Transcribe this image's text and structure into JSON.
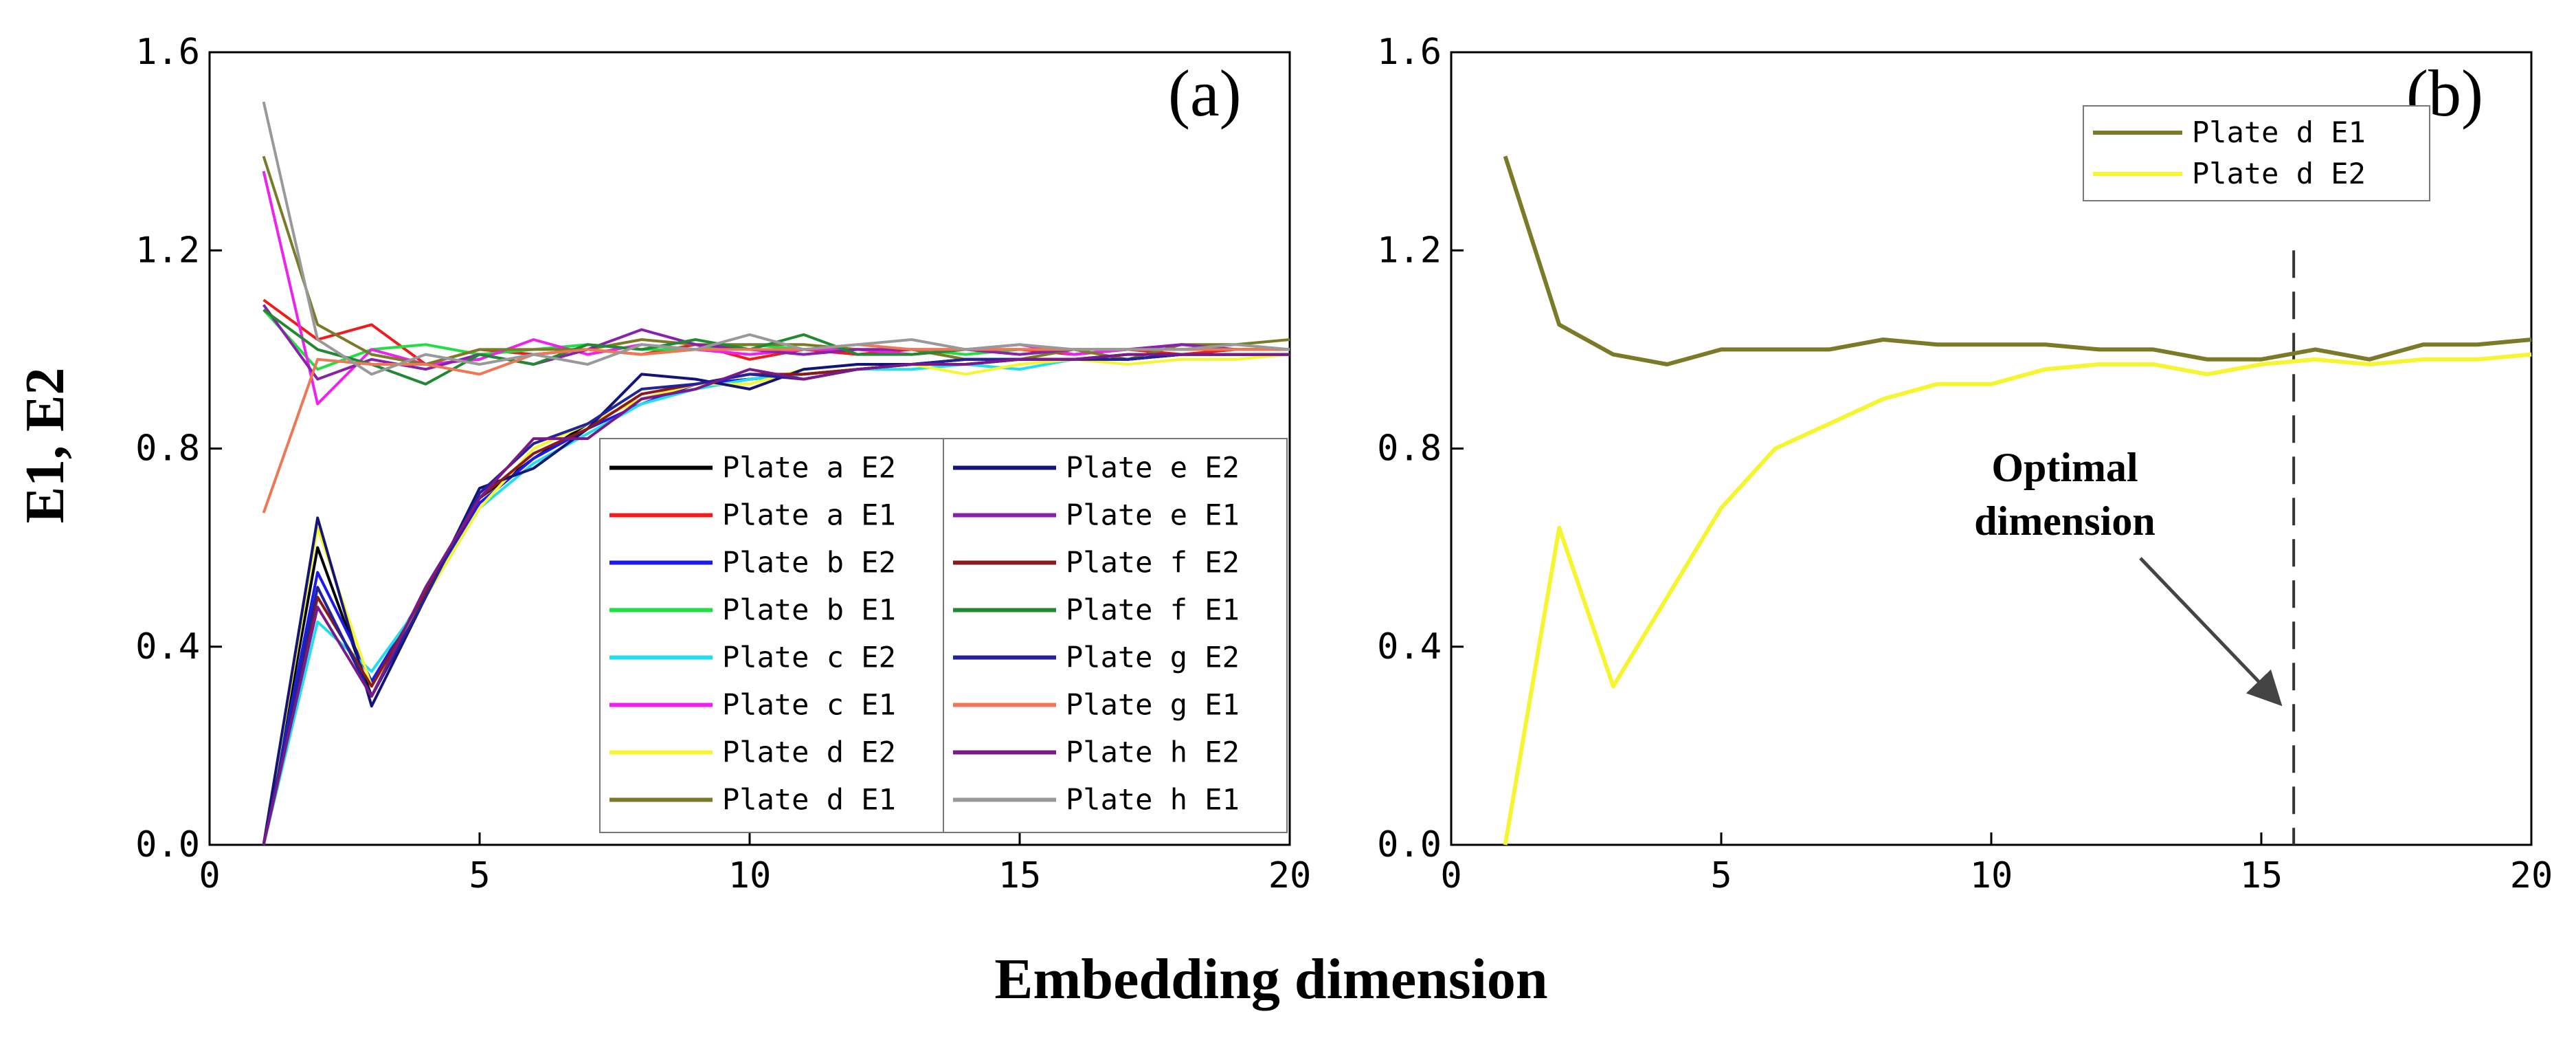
{
  "figure": {
    "xlabel": "Embedding dimension",
    "ylabel": "E1, E2"
  },
  "chart_data": [
    {
      "panel": "(a)",
      "type": "line",
      "xlim": [
        0,
        20
      ],
      "ylim": [
        0,
        1.6
      ],
      "x_ticks": [
        "0",
        "5",
        "10",
        "15",
        "20"
      ],
      "y_ticks": [
        "0.0",
        "0.4",
        "0.8",
        "1.2",
        "1.6"
      ],
      "legend_position": "bottom-right",
      "x": [
        1,
        2,
        3,
        4,
        5,
        6,
        7,
        8,
        9,
        10,
        11,
        12,
        13,
        14,
        15,
        16,
        17,
        18,
        19,
        20
      ],
      "series": [
        {
          "name": "Plate a E2",
          "color": "#000000",
          "values": [
            0.0,
            0.6,
            0.3,
            0.5,
            0.7,
            0.78,
            0.85,
            0.9,
            0.93,
            0.94,
            0.95,
            0.96,
            0.97,
            0.97,
            0.98,
            0.98,
            0.98,
            0.99,
            0.99,
            0.99
          ]
        },
        {
          "name": "Plate a E1",
          "color": "#ee1c1c",
          "values": [
            1.1,
            1.02,
            1.05,
            0.97,
            1.0,
            0.99,
            1.0,
            0.99,
            1.01,
            0.98,
            1.0,
            0.99,
            1.0,
            1.0,
            1.0,
            0.99,
            1.0,
            0.99,
            1.0,
            1.0
          ]
        },
        {
          "name": "Plate b E2",
          "color": "#1a1aee",
          "values": [
            0.0,
            0.55,
            0.33,
            0.51,
            0.69,
            0.78,
            0.84,
            0.89,
            0.93,
            0.94,
            0.95,
            0.96,
            0.97,
            0.97,
            0.98,
            0.98,
            0.98,
            0.99,
            0.99,
            0.99
          ]
        },
        {
          "name": "Plate b E1",
          "color": "#22dd44",
          "values": [
            1.08,
            0.96,
            1.0,
            1.01,
            0.99,
            1.0,
            1.01,
            1.0,
            1.0,
            1.01,
            1.0,
            1.0,
            1.0,
            0.99,
            1.0,
            1.0,
            1.0,
            1.0,
            1.0,
            1.0
          ]
        },
        {
          "name": "Plate c E2",
          "color": "#22ddee",
          "values": [
            0.0,
            0.45,
            0.35,
            0.5,
            0.68,
            0.77,
            0.83,
            0.89,
            0.92,
            0.94,
            0.95,
            0.96,
            0.96,
            0.97,
            0.96,
            0.98,
            0.98,
            0.99,
            0.99,
            0.99
          ]
        },
        {
          "name": "Plate c E1",
          "color": "#ee22ee",
          "values": [
            1.36,
            0.89,
            1.0,
            0.97,
            0.98,
            1.02,
            0.99,
            1.01,
            1.0,
            0.99,
            1.0,
            1.0,
            0.99,
            1.0,
            1.01,
            0.99,
            1.0,
            1.01,
            1.0,
            1.0
          ]
        },
        {
          "name": "Plate d E2",
          "color": "#f5f532",
          "values": [
            0.0,
            0.64,
            0.32,
            0.5,
            0.68,
            0.8,
            0.85,
            0.9,
            0.93,
            0.93,
            0.96,
            0.97,
            0.97,
            0.95,
            0.97,
            0.98,
            0.97,
            0.98,
            0.98,
            0.99
          ]
        },
        {
          "name": "Plate d E1",
          "color": "#7a7a28",
          "values": [
            1.39,
            1.05,
            0.99,
            0.97,
            1.0,
            1.0,
            1.0,
            1.02,
            1.01,
            1.01,
            1.01,
            1.0,
            1.0,
            0.98,
            0.98,
            1.0,
            0.98,
            1.01,
            1.01,
            1.02
          ]
        },
        {
          "name": "Plate e E2",
          "color": "#141478",
          "values": [
            0.0,
            0.66,
            0.28,
            0.5,
            0.72,
            0.76,
            0.84,
            0.95,
            0.94,
            0.92,
            0.96,
            0.97,
            0.97,
            0.98,
            0.98,
            0.98,
            0.98,
            0.99,
            0.99,
            0.99
          ]
        },
        {
          "name": "Plate e E1",
          "color": "#8822aa",
          "values": [
            1.09,
            0.94,
            0.98,
            0.96,
            0.99,
            0.97,
            1.0,
            1.04,
            1.01,
            1.0,
            0.99,
            1.0,
            1.0,
            1.0,
            0.99,
            1.0,
            1.0,
            1.01,
            1.0,
            1.0
          ]
        },
        {
          "name": "Plate f E2",
          "color": "#8a1a1a",
          "values": [
            0.0,
            0.5,
            0.32,
            0.51,
            0.7,
            0.79,
            0.84,
            0.91,
            0.93,
            0.95,
            0.95,
            0.96,
            0.97,
            0.98,
            0.98,
            0.98,
            0.99,
            0.99,
            0.99,
            0.99
          ]
        },
        {
          "name": "Plate f E1",
          "color": "#228833",
          "values": [
            1.08,
            1.0,
            0.97,
            0.93,
            0.99,
            0.97,
            1.01,
            1.0,
            1.02,
            1.0,
            1.03,
            0.99,
            0.99,
            1.0,
            1.0,
            1.0,
            1.0,
            1.0,
            1.0,
            1.0
          ]
        },
        {
          "name": "Plate g E2",
          "color": "#222299",
          "values": [
            0.0,
            0.52,
            0.3,
            0.5,
            0.71,
            0.81,
            0.85,
            0.92,
            0.93,
            0.95,
            0.94,
            0.96,
            0.97,
            0.98,
            0.98,
            0.98,
            0.98,
            0.99,
            0.99,
            0.99
          ]
        },
        {
          "name": "Plate g E1",
          "color": "#ee7755",
          "values": [
            0.67,
            0.98,
            0.97,
            0.97,
            0.95,
            0.99,
            1.0,
            0.99,
            1.0,
            1.0,
            1.0,
            1.01,
            1.0,
            1.0,
            1.0,
            1.0,
            1.0,
            1.0,
            1.0,
            1.0
          ]
        },
        {
          "name": "Plate h E2",
          "color": "#7a1a88",
          "values": [
            0.0,
            0.48,
            0.3,
            0.52,
            0.7,
            0.82,
            0.82,
            0.9,
            0.92,
            0.96,
            0.94,
            0.96,
            0.97,
            0.97,
            0.98,
            0.98,
            0.99,
            0.99,
            0.99,
            0.99
          ]
        },
        {
          "name": "Plate h E1",
          "color": "#999999",
          "values": [
            1.5,
            1.02,
            0.95,
            0.99,
            0.97,
            0.99,
            0.97,
            1.01,
            1.0,
            1.03,
            1.0,
            1.01,
            1.02,
            1.0,
            1.01,
            1.0,
            1.0,
            1.0,
            1.01,
            1.0
          ]
        }
      ]
    },
    {
      "panel": "(b)",
      "type": "line",
      "xlim": [
        0,
        20
      ],
      "ylim": [
        0,
        1.6
      ],
      "x_ticks": [
        "0",
        "5",
        "10",
        "15",
        "20"
      ],
      "y_ticks": [
        "0.0",
        "0.4",
        "0.8",
        "1.2",
        "1.6"
      ],
      "legend_position": "top-right",
      "x": [
        1,
        2,
        3,
        4,
        5,
        6,
        7,
        8,
        9,
        10,
        11,
        12,
        13,
        14,
        15,
        16,
        17,
        18,
        19,
        20
      ],
      "series": [
        {
          "name": "Plate d E1",
          "color": "#7a7a28",
          "values": [
            1.39,
            1.05,
            0.99,
            0.97,
            1.0,
            1.0,
            1.0,
            1.02,
            1.01,
            1.01,
            1.01,
            1.0,
            1.0,
            0.98,
            0.98,
            1.0,
            0.98,
            1.01,
            1.01,
            1.02
          ]
        },
        {
          "name": "Plate d E2",
          "color": "#f5f532",
          "values": [
            0.0,
            0.64,
            0.32,
            0.5,
            0.68,
            0.8,
            0.85,
            0.9,
            0.93,
            0.93,
            0.96,
            0.97,
            0.97,
            0.95,
            0.97,
            0.98,
            0.97,
            0.98,
            0.98,
            0.99
          ]
        }
      ],
      "vline_x": 15.6,
      "annotation": {
        "text_line1": "Optimal",
        "text_line2": "dimension",
        "arrow_to": [
          15.3,
          0.29
        ]
      }
    }
  ]
}
